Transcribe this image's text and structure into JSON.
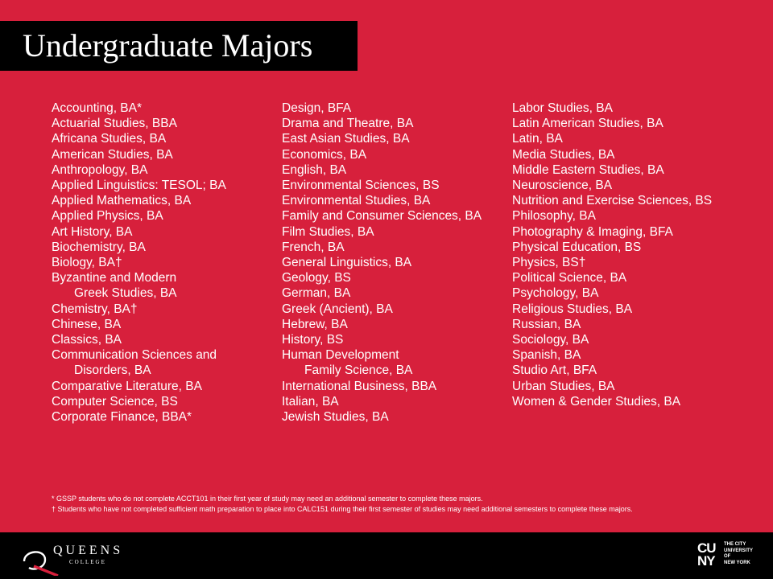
{
  "title": "Undergraduate Majors",
  "columns": [
    [
      {
        "text": "Accounting, BA*"
      },
      {
        "text": "Actuarial Studies, BBA"
      },
      {
        "text": "Africana Studies, BA"
      },
      {
        "text": "American Studies, BA"
      },
      {
        "text": "Anthropology, BA"
      },
      {
        "text": "Applied Linguistics: TESOL; BA"
      },
      {
        "text": "Applied Mathematics, BA"
      },
      {
        "text": "Applied Physics, BA"
      },
      {
        "text": "Art History, BA"
      },
      {
        "text": "Biochemistry, BA"
      },
      {
        "text": "Biology, BA†"
      },
      {
        "text": "Byzantine and Modern"
      },
      {
        "text": "Greek Studies, BA",
        "cont": true
      },
      {
        "text": "Chemistry, BA†"
      },
      {
        "text": "Chinese, BA"
      },
      {
        "text": "Classics, BA"
      },
      {
        "text": "Communication Sciences and"
      },
      {
        "text": "Disorders, BA",
        "cont": true
      },
      {
        "text": "Comparative Literature, BA"
      },
      {
        "text": "Computer Science, BS"
      },
      {
        "text": "Corporate Finance, BBA*"
      }
    ],
    [
      {
        "text": "Design, BFA"
      },
      {
        "text": "Drama and Theatre, BA"
      },
      {
        "text": "East Asian Studies, BA"
      },
      {
        "text": "Economics, BA"
      },
      {
        "text": "English, BA"
      },
      {
        "text": "Environmental Sciences, BS"
      },
      {
        "text": "Environmental Studies, BA"
      },
      {
        "text": "Family and Consumer Sciences, BA"
      },
      {
        "text": "Film Studies, BA"
      },
      {
        "text": "French, BA"
      },
      {
        "text": "General Linguistics, BA"
      },
      {
        "text": "Geology, BS"
      },
      {
        "text": "German, BA"
      },
      {
        "text": "Greek (Ancient), BA"
      },
      {
        "text": "Hebrew, BA"
      },
      {
        "text": "History, BS"
      },
      {
        "text": "Human Development"
      },
      {
        "text": "Family Science, BA",
        "cont": true
      },
      {
        "text": "International Business, BBA"
      },
      {
        "text": "Italian, BA"
      },
      {
        "text": "Jewish Studies, BA"
      }
    ],
    [
      {
        "text": "Labor Studies, BA"
      },
      {
        "text": "Latin American Studies, BA"
      },
      {
        "text": "Latin, BA"
      },
      {
        "text": "Media Studies, BA"
      },
      {
        "text": "Middle Eastern Studies, BA"
      },
      {
        "text": "Neuroscience, BA"
      },
      {
        "text": "Nutrition and Exercise Sciences, BS"
      },
      {
        "text": "Philosophy, BA"
      },
      {
        "text": "Photography & Imaging, BFA"
      },
      {
        "text": "Physical Education, BS"
      },
      {
        "text": "Physics, BS†"
      },
      {
        "text": "Political Science, BA"
      },
      {
        "text": "Psychology, BA"
      },
      {
        "text": "Religious Studies, BA"
      },
      {
        "text": "Russian, BA"
      },
      {
        "text": "Sociology, BA"
      },
      {
        "text": "Spanish, BA"
      },
      {
        "text": "Studio Art, BFA"
      },
      {
        "text": "Urban Studies, BA"
      },
      {
        "text": "Women & Gender Studies, BA"
      }
    ]
  ],
  "footnotes": [
    "* GSSP students who do not complete ACCT101 in their first year of study may need an additional semester to complete these majors.",
    "† Students who have not completed sufficient math preparation to place into CALC151 during their first semester of studies may need additional semesters to complete these majors."
  ],
  "footer": {
    "qc_letter": "Q",
    "qc_name": "QUEENS",
    "qc_sub": "COLLEGE",
    "cuny_mark_top": "CU",
    "cuny_mark_bottom": "NY",
    "cuny_text": [
      "THE CITY",
      "UNIVERSITY",
      "OF",
      "NEW YORK"
    ]
  },
  "colors": {
    "background": "#d7203c",
    "title_bar": "#000000",
    "footer": "#000000",
    "text": "#ffffff"
  }
}
